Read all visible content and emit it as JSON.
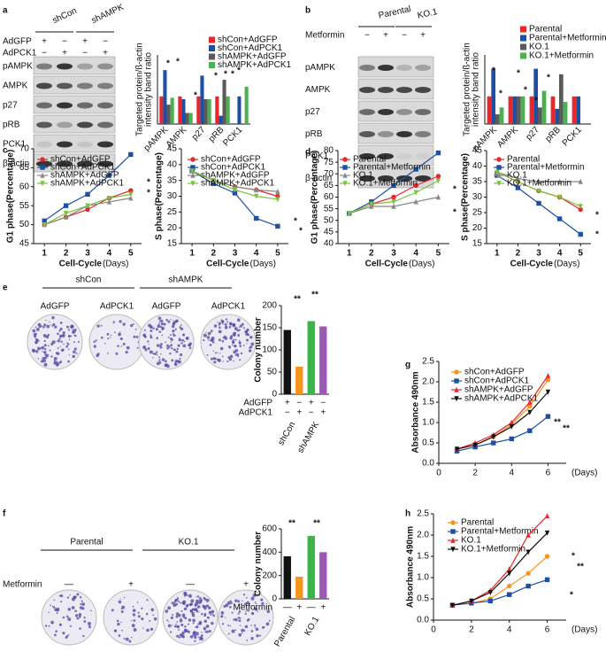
{
  "panel_labels": [
    "a",
    "b",
    "c",
    "d",
    "e",
    "f",
    "g",
    "h"
  ],
  "blots": [
    {
      "groups": [
        "shCon",
        "shAMPK"
      ],
      "conditions": [
        {
          "label": "AdGFP",
          "signs": [
            "+",
            "−",
            "+",
            "−"
          ]
        },
        {
          "label": "AdPCK1",
          "signs": [
            "−",
            "+",
            "−",
            "+"
          ]
        }
      ],
      "rows": [
        "pAMPK",
        "AMPK",
        "p27",
        "pRB",
        "PCK1",
        "β-actin"
      ]
    },
    {
      "groups": [
        "Parental",
        "KO.1"
      ],
      "conditions": [
        {
          "label": "Metformin",
          "signs": [
            "−",
            "+",
            "−",
            "+"
          ]
        }
      ],
      "rows": [
        "pAMPK",
        "AMPK",
        "p27",
        "pRB",
        "PCK1",
        "β-actin"
      ]
    }
  ],
  "colony_plates": [
    {
      "groups": [
        "shCon",
        "shAMPK"
      ],
      "treatments": [
        "AdGFP",
        "AdPCK1",
        "AdGFP",
        "AdPCK1"
      ]
    },
    {
      "groups": [
        "Parental",
        "KO.1"
      ],
      "condition": {
        "label": "Metformin",
        "signs": [
          "—",
          "+",
          "—",
          "+"
        ]
      }
    }
  ],
  "chart_data": [
    {
      "type": "bar",
      "ylabel": [
        "Targeted protein/ß-actin",
        "intensity band ratio"
      ],
      "categories": [
        "pAMPK",
        "AMPK",
        "p27",
        "pRB",
        "PCK1"
      ],
      "ylim": [
        0,
        2.5
      ],
      "series": [
        {
          "name": "shCon+AdGFP",
          "color": "#e8262b",
          "values": [
            1.0,
            1.0,
            1.0,
            1.0,
            null
          ]
        },
        {
          "name": "shCon+AdPCK1",
          "color": "#1d4fa3",
          "values": [
            1.95,
            0.9,
            1.75,
            0.3,
            1.0
          ]
        },
        {
          "name": "shAMPK+AdGFP",
          "color": "#5a5a5a",
          "values": [
            0.7,
            0.4,
            0.9,
            1.6,
            null
          ]
        },
        {
          "name": "shAMPK+AdPCK1",
          "color": "#4caf50",
          "values": [
            0.95,
            0.4,
            0.9,
            1.0,
            1.35
          ]
        }
      ],
      "annotations": [
        "*",
        "*",
        "*",
        "*",
        "*",
        "*",
        "*"
      ]
    },
    {
      "type": "bar",
      "ylabel": [
        "Targeted protein/ß-actin",
        "intensity band ratio"
      ],
      "categories": [
        "pAMPK",
        "AMPK",
        "p27",
        "pRB",
        "PCK1"
      ],
      "ylim": [
        0,
        2.5
      ],
      "series": [
        {
          "name": "Parental",
          "color": "#e8262b",
          "values": [
            1.0,
            1.0,
            1.0,
            1.0,
            1.0
          ]
        },
        {
          "name": "Parental+Metformin",
          "color": "#1d4fa3",
          "values": [
            2.0,
            1.0,
            2.0,
            0.55,
            1.0
          ]
        },
        {
          "name": "KO.1",
          "color": "#5a5a5a",
          "values": [
            0.35,
            1.0,
            0.6,
            1.8,
            0
          ]
        },
        {
          "name": "KO.1+Metformin",
          "color": "#4caf50",
          "values": [
            0.6,
            1.0,
            1.2,
            0.8,
            0
          ]
        }
      ],
      "annotations": [
        "*",
        "*",
        "*",
        "*",
        "*",
        "*"
      ]
    },
    {
      "type": "line",
      "ylabel": "G1 phase(Percentage)",
      "xlabel": "Cell-Cycle",
      "xunit": "(Days)",
      "x": [
        1,
        2,
        3,
        4,
        5
      ],
      "xlim": [
        0.5,
        5.5
      ],
      "xticks": [
        1,
        2,
        3,
        4,
        5
      ],
      "ylim": [
        45,
        70
      ],
      "yticks": [
        45,
        50,
        55,
        60,
        65,
        70
      ],
      "series": [
        {
          "name": "shCon+AdGFP",
          "color": "#e8262b",
          "marker": "circle",
          "values": [
            50,
            52,
            54,
            57,
            59
          ]
        },
        {
          "name": "shCon+AdPCK1",
          "color": "#1d4fa3",
          "marker": "square",
          "values": [
            51,
            55,
            58,
            63,
            68.5
          ]
        },
        {
          "name": "shAMPK+AdGFP",
          "color": "#888888",
          "marker": "triangle",
          "values": [
            50,
            52,
            55,
            56,
            57
          ]
        },
        {
          "name": "shAMPK+AdPCK1",
          "color": "#7cc242",
          "marker": "triangle-down",
          "values": [
            50,
            53,
            55,
            57,
            58
          ]
        }
      ],
      "annotations": [
        "*",
        "*"
      ]
    },
    {
      "type": "line",
      "ylabel": "S phase(Percentage)",
      "xlabel": "Cell-Cycle",
      "xunit": "(Days)",
      "x": [
        1,
        2,
        3,
        4,
        5
      ],
      "xlim": [
        0.5,
        5.5
      ],
      "xticks": [
        1,
        2,
        3,
        4,
        5
      ],
      "ylim": [
        15,
        45
      ],
      "yticks": [
        15,
        20,
        25,
        30,
        35,
        40,
        45
      ],
      "series": [
        {
          "name": "shCon+AdGFP",
          "color": "#e8262b",
          "marker": "circle",
          "values": [
            38,
            35,
            33,
            32,
            30
          ]
        },
        {
          "name": "shCon+AdPCK1",
          "color": "#1d4fa3",
          "marker": "square",
          "values": [
            38,
            34,
            31,
            23,
            20.5
          ]
        },
        {
          "name": "shAMPK+AdGFP",
          "color": "#888888",
          "marker": "triangle",
          "values": [
            38,
            35,
            33,
            32,
            31.5
          ]
        },
        {
          "name": "shAMPK+AdPCK1",
          "color": "#7cc242",
          "marker": "triangle-down",
          "values": [
            38,
            35,
            32,
            30,
            29
          ]
        }
      ],
      "annotations": [
        "*",
        "*"
      ]
    },
    {
      "type": "line",
      "ylabel": "G1 phase(Percentage)",
      "xlabel": "Cell-Cycle",
      "xunit": "(Days)",
      "x": [
        1,
        2,
        3,
        4,
        5
      ],
      "xlim": [
        0.5,
        5.5
      ],
      "xticks": [
        1,
        2,
        3,
        4,
        5
      ],
      "ylim": [
        40,
        80
      ],
      "yticks": [
        40,
        45,
        50,
        55,
        60,
        65,
        70,
        75,
        80
      ],
      "series": [
        {
          "name": "Parental",
          "color": "#e8262b",
          "marker": "circle",
          "values": [
            53,
            57,
            60,
            65,
            69
          ]
        },
        {
          "name": "Parental+Metformin",
          "color": "#1d4fa3",
          "marker": "square",
          "values": [
            53,
            58,
            65,
            72,
            79
          ]
        },
        {
          "name": "KO.1",
          "color": "#888888",
          "marker": "triangle",
          "values": [
            53,
            56,
            56,
            58,
            60
          ]
        },
        {
          "name": "KO.1+Metformin",
          "color": "#7cc242",
          "marker": "triangle-down",
          "values": [
            53,
            57,
            58,
            62,
            67
          ]
        }
      ],
      "annotations": [
        "*",
        "*"
      ]
    },
    {
      "type": "line",
      "ylabel": "S phase(Percentage)",
      "xlabel": "Cell-Cycle",
      "xunit": "(Days)",
      "x": [
        1,
        2,
        3,
        4,
        5
      ],
      "xlim": [
        0.5,
        5.5
      ],
      "xticks": [
        1,
        2,
        3,
        4,
        5
      ],
      "ylim": [
        15,
        45
      ],
      "yticks": [
        15,
        20,
        25,
        30,
        35,
        40,
        45
      ],
      "series": [
        {
          "name": "Parental",
          "color": "#e8262b",
          "marker": "circle",
          "values": [
            38,
            35,
            32,
            30,
            26
          ]
        },
        {
          "name": "Parental+Metformin",
          "color": "#1d4fa3",
          "marker": "square",
          "values": [
            37,
            33,
            28,
            23,
            18
          ]
        },
        {
          "name": "KO.1",
          "color": "#888888",
          "marker": "triangle",
          "values": [
            38,
            36,
            35,
            35,
            35
          ]
        },
        {
          "name": "KO.1+Metformin",
          "color": "#7cc242",
          "marker": "triangle-down",
          "values": [
            38,
            35,
            32,
            30,
            27
          ]
        }
      ],
      "annotations": [
        "*",
        "*"
      ]
    },
    {
      "type": "bar",
      "ylabel": "Colony number",
      "values": [
        145,
        62,
        165,
        153
      ],
      "colors": [
        "#111111",
        "#f7941d",
        "#39b54a",
        "#9b59b6"
      ],
      "ylim": [
        0,
        200
      ],
      "yticks": [
        0,
        50,
        100,
        150,
        200
      ],
      "conditions": [
        {
          "label": "AdGFP",
          "signs": [
            "+",
            "−",
            "+",
            "−"
          ]
        },
        {
          "label": "AdPCK1",
          "signs": [
            "−",
            "+",
            "−",
            "+"
          ]
        }
      ],
      "groups": [
        "shCon",
        "shAMPK"
      ],
      "annotations": [
        "**",
        "**"
      ]
    },
    {
      "type": "bar",
      "ylabel": "Colony number",
      "values": [
        365,
        190,
        540,
        400
      ],
      "colors": [
        "#111111",
        "#f7941d",
        "#39b54a",
        "#9b59b6"
      ],
      "ylim": [
        0,
        600
      ],
      "yticks": [
        0,
        200,
        400,
        600
      ],
      "conditions": [
        {
          "label": "Metformin",
          "signs": [
            "—",
            "+",
            "—",
            "+"
          ]
        }
      ],
      "groups": [
        "Parental",
        "KO.1"
      ],
      "annotations": [
        "**",
        "**"
      ]
    },
    {
      "type": "line",
      "ylabel": "Absorbance 490nm",
      "xunit": "(Days)",
      "x": [
        1,
        2,
        3,
        4,
        5,
        6
      ],
      "xlim": [
        0,
        7
      ],
      "xticks": [
        0,
        2,
        4,
        6
      ],
      "ylim": [
        0,
        2.5
      ],
      "yticks": [
        {
          "value": 0,
          "label": "0.0"
        },
        0.5,
        {
          "value": 1,
          "label": "1.0"
        },
        1.5,
        {
          "value": 2,
          "label": "2.0"
        },
        2.5
      ],
      "series": [
        {
          "name": "shCon+AdGFP",
          "color": "#f7941d",
          "marker": "circle",
          "values": [
            0.35,
            0.45,
            0.65,
            0.95,
            1.4,
            2.05
          ]
        },
        {
          "name": "shCon+AdPCK1",
          "color": "#1d4fa3",
          "marker": "square",
          "values": [
            0.3,
            0.4,
            0.5,
            0.6,
            0.8,
            1.15
          ]
        },
        {
          "name": "shAMPK+AdGFP",
          "color": "#e8262b",
          "marker": "triangle",
          "values": [
            0.35,
            0.5,
            0.7,
            1.0,
            1.5,
            2.15
          ]
        },
        {
          "name": "shAMPK+AdPCK1",
          "color": "#111111",
          "marker": "triangle-down",
          "values": [
            0.35,
            0.45,
            0.65,
            0.9,
            1.25,
            1.75
          ]
        }
      ],
      "annotations": [
        "**",
        "**"
      ]
    },
    {
      "type": "line",
      "ylabel": "Absorbance 490nm",
      "xunit": "(Days)",
      "x": [
        1,
        2,
        3,
        4,
        5,
        6
      ],
      "xlim": [
        0,
        7
      ],
      "xticks": [
        0,
        2,
        4,
        6
      ],
      "ylim": [
        0,
        2.5
      ],
      "yticks": [
        {
          "value": 0,
          "label": "0.0"
        },
        0.5,
        {
          "value": 1,
          "label": "1.0"
        },
        1.5,
        {
          "value": 2,
          "label": "2.0"
        },
        2.5
      ],
      "series": [
        {
          "name": "Parental",
          "color": "#f7941d",
          "marker": "circle",
          "values": [
            0.35,
            0.4,
            0.5,
            0.8,
            1.1,
            1.5
          ]
        },
        {
          "name": "Parental+Metformin",
          "color": "#1d4fa3",
          "marker": "square",
          "values": [
            0.35,
            0.4,
            0.45,
            0.6,
            0.8,
            0.95
          ]
        },
        {
          "name": "KO.1",
          "color": "#e8262b",
          "marker": "triangle",
          "values": [
            0.35,
            0.45,
            0.7,
            1.2,
            2.0,
            2.45
          ]
        },
        {
          "name": "KO.1+Metformin",
          "color": "#111111",
          "marker": "triangle-down",
          "values": [
            0.35,
            0.45,
            0.65,
            1.1,
            1.6,
            2.05
          ]
        }
      ],
      "annotations": [
        "*",
        "**",
        "*"
      ]
    }
  ]
}
